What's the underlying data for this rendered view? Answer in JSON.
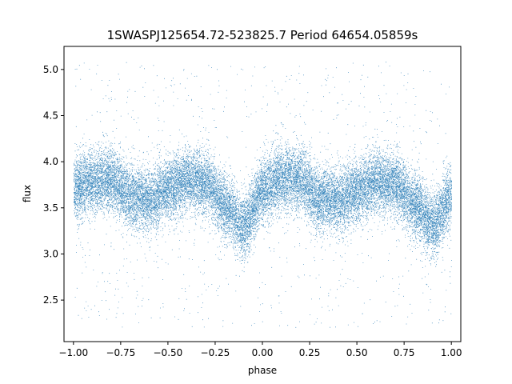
{
  "chart_data": {
    "type": "scatter",
    "title": "1SWASPJ125654.72-523825.7 Period 64654.05859s",
    "xlabel": "phase",
    "ylabel": "flux",
    "xlim": [
      -1.05,
      1.05
    ],
    "ylim": [
      2.05,
      5.25
    ],
    "grid": false,
    "legend": "none",
    "x_ticks": [
      -1.0,
      -0.75,
      -0.5,
      -0.25,
      0.0,
      0.25,
      0.5,
      0.75,
      1.0
    ],
    "x_tick_labels": [
      "−1.00",
      "−0.75",
      "−0.50",
      "−0.25",
      "0.00",
      "0.25",
      "0.50",
      "0.75",
      "1.00"
    ],
    "y_ticks": [
      2.5,
      3.0,
      3.5,
      4.0,
      4.5,
      5.0
    ],
    "y_tick_labels": [
      "2.5",
      "3.0",
      "3.5",
      "4.0",
      "4.5",
      "5.0"
    ],
    "marker_color": "#1f77b4",
    "series": [
      {
        "x": [
          -1.0,
          -0.9,
          -0.8,
          -0.7,
          -0.6,
          -0.5,
          -0.4,
          -0.3,
          -0.2,
          -0.1,
          0.0,
          0.1,
          0.2,
          0.3,
          0.4,
          0.5,
          0.6,
          0.7,
          0.8,
          0.9,
          1.0
        ],
        "y": [
          3.72,
          3.78,
          3.8,
          3.63,
          3.58,
          3.7,
          3.8,
          3.76,
          3.52,
          3.3,
          3.68,
          3.82,
          3.8,
          3.6,
          3.58,
          3.68,
          3.78,
          3.75,
          3.55,
          3.32,
          3.62
        ],
        "scatter": 0.17,
        "points_total": 26000,
        "outlier_range": [
          2.2,
          5.1
        ]
      }
    ]
  }
}
